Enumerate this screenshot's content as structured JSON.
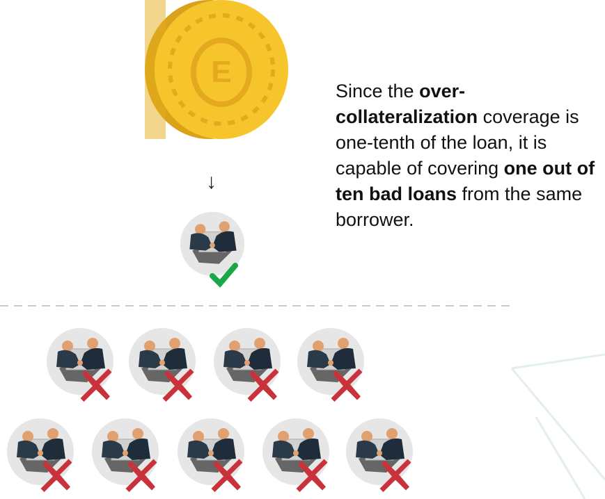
{
  "arrow": "↓",
  "text": {
    "segments": [
      {
        "text": "Since the ",
        "bold": false
      },
      {
        "text": "over-collateralization",
        "bold": true
      },
      {
        "text": " coverage is one-tenth of the loan, it is capable of covering ",
        "bold": false
      },
      {
        "text": "one out of ten bad loans",
        "bold": true
      },
      {
        "text": " from the same borrower.",
        "bold": false
      }
    ]
  }
}
